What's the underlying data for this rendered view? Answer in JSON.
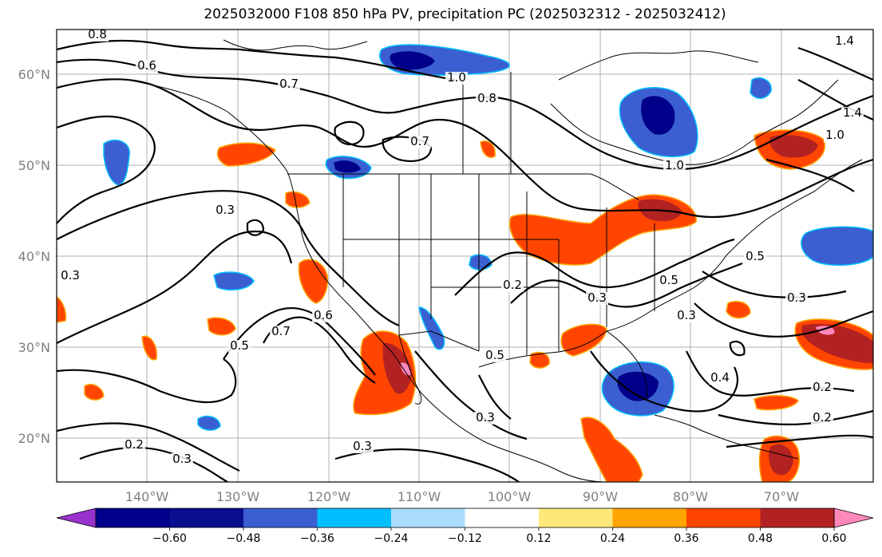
{
  "title": "2025032000 F108 850 hPa PV, precipitation PC (2025032312 - 2025032412)",
  "map": {
    "lon_ticks": [
      "140°W",
      "130°W",
      "120°W",
      "110°W",
      "100°W",
      "90°W",
      "80°W",
      "70°W"
    ],
    "lat_ticks": [
      "60°N",
      "50°N",
      "40°N",
      "30°N",
      "20°N"
    ],
    "contour_labels": [
      "0.8",
      "0.6",
      "0.7",
      "1.0",
      "0.8",
      "0.7",
      "0.3",
      "0.3",
      "0.2",
      "0.5",
      "0.7",
      "0.6",
      "0.5",
      "0.3",
      "0.5",
      "0.3",
      "0.4",
      "0.3",
      "0.2",
      "0.3",
      "0.2",
      "0.3",
      "0.3",
      "0.2",
      "1.0",
      "1.4",
      "1.4",
      "1.0",
      "0.5"
    ]
  },
  "colorbar": {
    "labels": [
      "−0.60",
      "−0.48",
      "−0.36",
      "−0.24",
      "−0.12",
      "0.12",
      "0.24",
      "0.36",
      "0.48",
      "0.60"
    ],
    "colors": [
      "#9932cc",
      "#00008b",
      "#0a0f90",
      "#3b5fd0",
      "#00bfff",
      "#aadcff",
      "#ffffff",
      "#ffe87a",
      "#ffa500",
      "#ff4500",
      "#b22222",
      "#ff88bb"
    ]
  },
  "colors": {
    "neg_strong": "#00008b",
    "neg_mid": "#3b5fd0",
    "neg_light": "#00bfff",
    "pos_light": "#ffe87a",
    "pos_mid": "#ffa500",
    "pos_strong": "#ff4500",
    "pos_dark": "#b22222",
    "pos_max": "#ff88bb"
  }
}
